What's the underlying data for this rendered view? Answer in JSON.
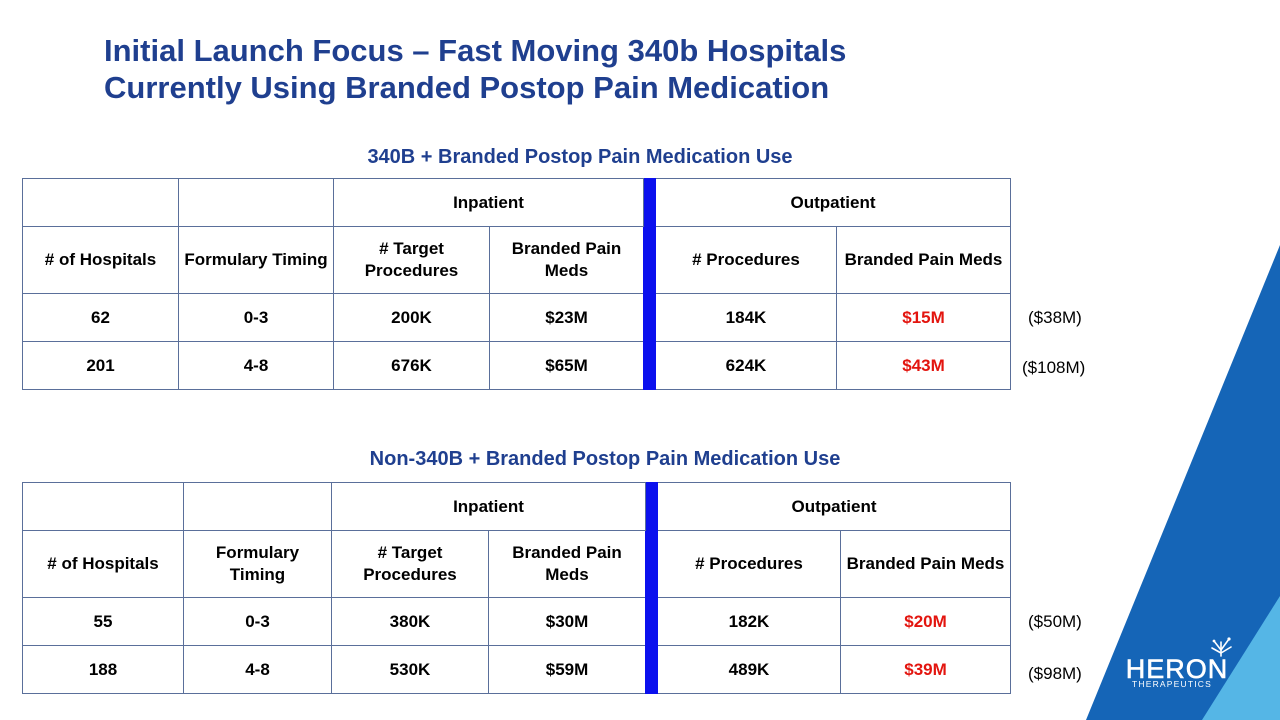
{
  "title": {
    "line1": "Initial Launch Focus – Fast Moving 340b Hospitals",
    "line2": "Currently Using Branded Postop Pain Medication"
  },
  "tables": [
    {
      "caption": "340B + Branded Postop Pain Medication Use",
      "groups": {
        "inpatient": "Inpatient",
        "outpatient": "Outpatient"
      },
      "headers": [
        "# of Hospitals",
        "Formulary Timing",
        "# Target Procedures",
        "Branded Pain Meds",
        "# Procedures",
        "Branded Pain Meds"
      ],
      "rows": [
        [
          "62",
          "0-3",
          "200K",
          "$23M",
          "184K",
          "$15M"
        ],
        [
          "201",
          "4-8",
          "676K",
          "$65M",
          "624K",
          "$43M"
        ]
      ],
      "totals": [
        "($38M)",
        "($108M)"
      ]
    },
    {
      "caption": "Non-340B + Branded Postop Pain Medication Use",
      "groups": {
        "inpatient": "Inpatient",
        "outpatient": "Outpatient"
      },
      "headers": [
        "# of Hospitals",
        "Formulary Timing",
        "# Target Procedures",
        "Branded Pain Meds",
        "# Procedures",
        "Branded Pain Meds"
      ],
      "rows": [
        [
          "55",
          "0-3",
          "380K",
          "$30M",
          "182K",
          "$20M"
        ],
        [
          "188",
          "4-8",
          "530K",
          "$59M",
          "489K",
          "$39M"
        ]
      ],
      "totals": [
        "($50M)",
        "($98M)"
      ]
    }
  ],
  "logo": {
    "name": "HERON",
    "sub": "THERAPEUTICS"
  },
  "colors": {
    "title": "#1f3f8f",
    "divider": "#0b10ee",
    "highlight_red": "#e3150f",
    "deco_dark": "#1565b7",
    "deco_light": "#55b6e6"
  }
}
